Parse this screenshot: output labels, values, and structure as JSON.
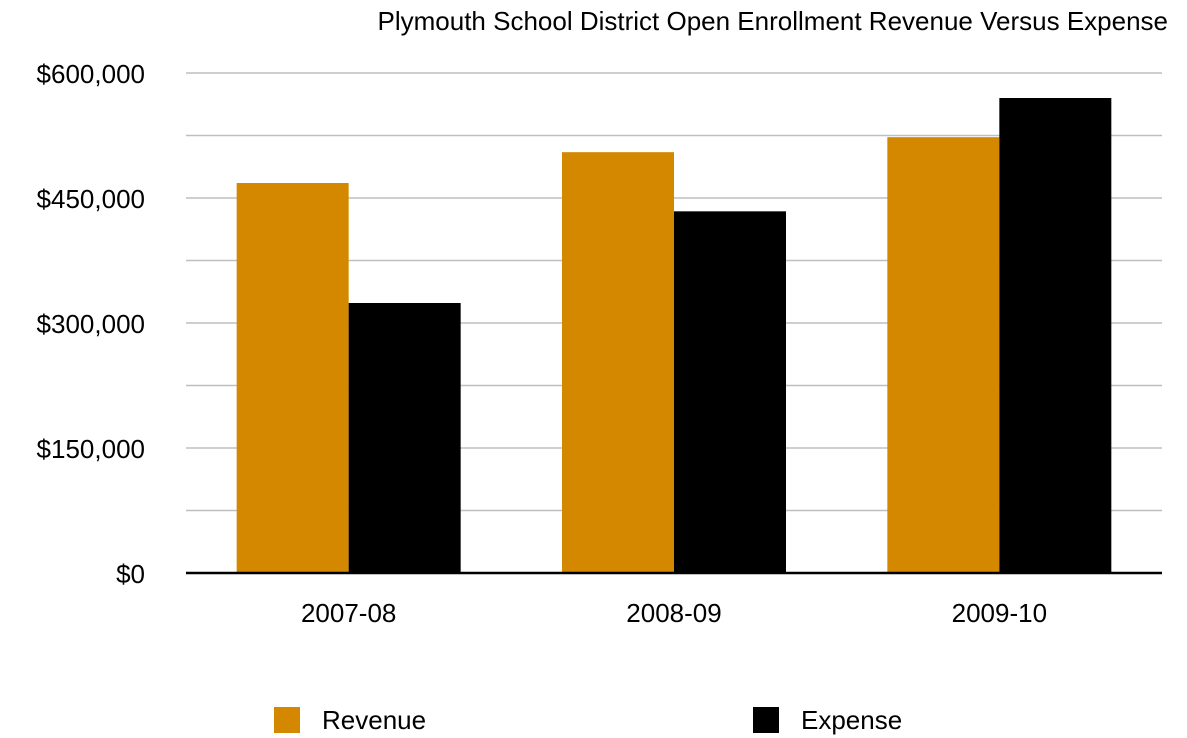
{
  "chart_data": {
    "type": "bar",
    "title": "Plymouth School District Open Enrollment Revenue Versus Expense",
    "xlabel": "",
    "ylabel": "",
    "categories": [
      "2007-08",
      "2008-09",
      "2009-10"
    ],
    "series": [
      {
        "name": "Revenue",
        "values": [
          468000,
          505000,
          523000
        ],
        "color": "#D38800"
      },
      {
        "name": "Expense",
        "values": [
          324000,
          434000,
          570000
        ],
        "color": "#000000"
      }
    ],
    "ylim": [
      0,
      600000
    ],
    "y_ticks": [
      "$0",
      "$150,000",
      "$300,000",
      "$450,000",
      "$600,000"
    ],
    "y_tick_values": [
      0,
      150000,
      300000,
      450000,
      600000
    ],
    "minor_gridlines": [
      75000,
      225000,
      375000,
      525000
    ],
    "grid": true,
    "legend": "bottom",
    "colors": {
      "gridline": "#BFBFBF",
      "axis": "#000000"
    }
  }
}
